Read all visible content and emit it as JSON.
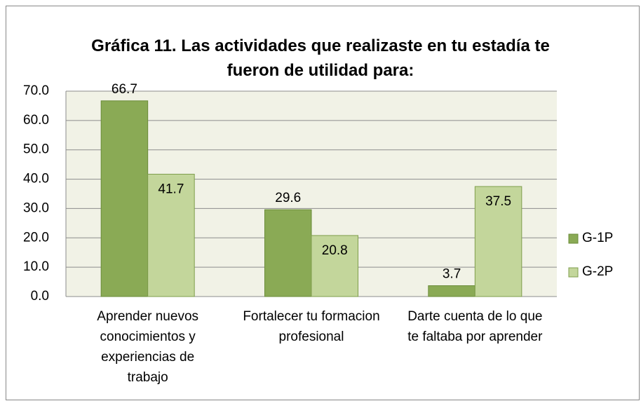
{
  "chart_data": {
    "type": "bar",
    "title": "Gráfica 11. Las actividades que realizaste en tu estadía te fueron de utilidad para:",
    "categories": [
      "Aprender nuevos conocimientos y experiencias de trabajo",
      "Fortalecer tu formacion profesional",
      "Darte cuenta de lo que te faltaba por aprender"
    ],
    "series": [
      {
        "name": "G-1P",
        "color": "#8aaa55",
        "values": [
          66.7,
          29.6,
          3.7
        ],
        "value_labels": [
          "66.7",
          "29.6",
          "3.7"
        ]
      },
      {
        "name": "G-2P",
        "color": "#c3d69b",
        "values": [
          41.7,
          20.8,
          37.5
        ],
        "value_labels": [
          "41.7",
          "20.8",
          "37.5"
        ]
      }
    ],
    "ylim": [
      0,
      70
    ],
    "yticks": [
      {
        "value": 0,
        "label": "0.0"
      },
      {
        "value": 10,
        "label": "10.0"
      },
      {
        "value": 20,
        "label": "20.0"
      },
      {
        "value": 30,
        "label": "30.0"
      },
      {
        "value": 40,
        "label": "40.0"
      },
      {
        "value": 50,
        "label": "50.0"
      },
      {
        "value": 60,
        "label": "60.0"
      },
      {
        "value": 70,
        "label": "70.0"
      }
    ],
    "grid": true,
    "legend": "right"
  }
}
